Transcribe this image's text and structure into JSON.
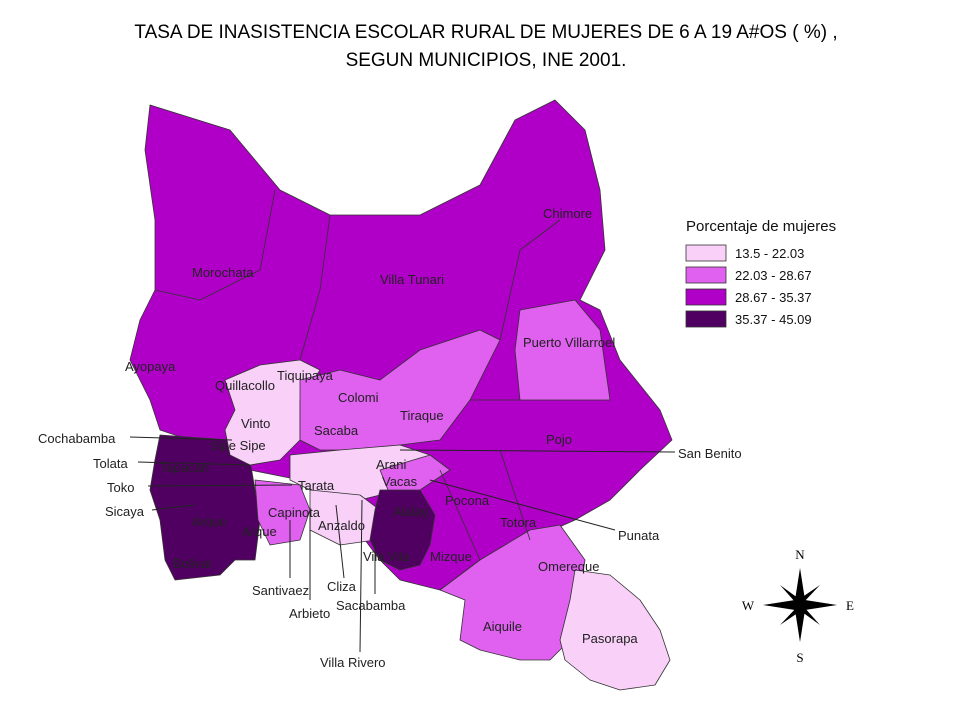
{
  "title": [
    "TASA DE INASISTENCIA ESCOLAR RURAL DE MUJERES DE 6 A 19 A#OS ( %) ,",
    "SEGUN MUNICIPIOS, INE 2001."
  ],
  "legend": {
    "title": "Porcentaje de mujeres",
    "items": [
      {
        "label": "13.5 - 22.03",
        "color": "#f8d0f8"
      },
      {
        "label": "22.03 - 28.67",
        "color": "#e060f0"
      },
      {
        "label": "28.67 - 35.37",
        "color": "#b000c8"
      },
      {
        "label": "35.37 - 45.09",
        "color": "#500060"
      }
    ]
  },
  "municipalities": [
    "Morochata",
    "Villa Tunari",
    "Chimore",
    "Puerto Villarroel",
    "Ayopaya",
    "Quillacollo",
    "Tiquipaya",
    "Colomi",
    "Tiraque",
    "Vinto",
    "Sacaba",
    "Cochabamba",
    "Sipe Sipe",
    "Tapacari",
    "Arani",
    "Pojo",
    "San Benito",
    "Tolata",
    "Toko",
    "Tarata",
    "Vacas",
    "Pocona",
    "Sicaya",
    "Arque",
    "Capinota",
    "Anzaldo",
    "Alalay",
    "Totora",
    "Punata",
    "Arque",
    "Bolivar",
    "Vila Vila",
    "Mizque",
    "Omereque",
    "Santivaez",
    "Cliza",
    "Arbieto",
    "Sacabamba",
    "Aiquile",
    "Pasorapa",
    "Villa Rivero"
  ],
  "compass": {
    "n": "N",
    "s": "S",
    "w": "W",
    "e": "E"
  }
}
